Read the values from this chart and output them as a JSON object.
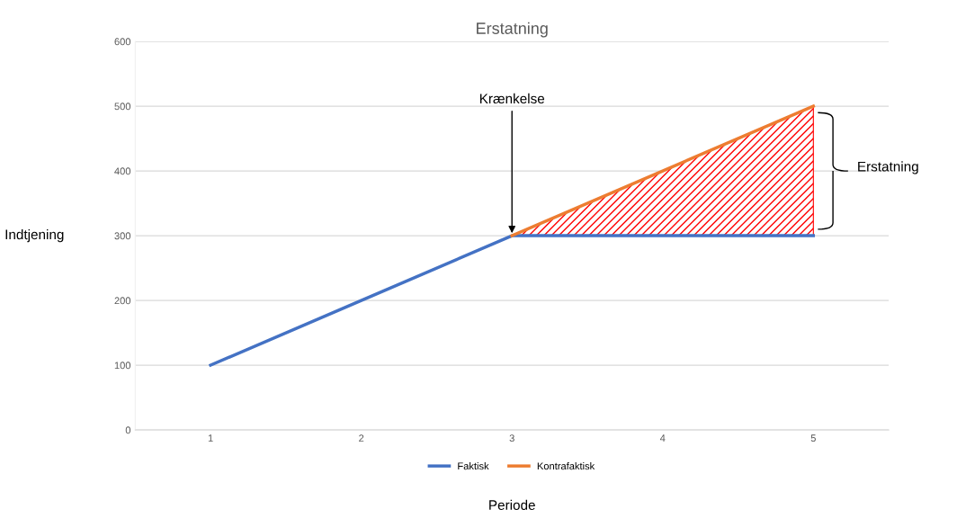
{
  "chart_data": {
    "type": "line",
    "title": "Erstatning",
    "xlabel": "Periode",
    "ylabel": "Indtjening",
    "categories": [
      "1",
      "2",
      "3",
      "4",
      "5"
    ],
    "series": [
      {
        "name": "Faktisk",
        "color": "#4472c4",
        "values": [
          100,
          200,
          300,
          300,
          300
        ]
      },
      {
        "name": "Kontrafaktisk",
        "color": "#ed7d31",
        "values": [
          null,
          null,
          300,
          400,
          500
        ],
        "lower": [
          null,
          null,
          300,
          300,
          300
        ],
        "upper": [
          null,
          null,
          300,
          400,
          500
        ]
      }
    ],
    "annotations": [
      {
        "text": "Krænkelse",
        "x": "3",
        "y": 300
      },
      "Erstatning"
    ],
    "ylim": [
      0,
      600
    ],
    "yticks": [
      0,
      100,
      200,
      300,
      400,
      500,
      600
    ],
    "grid": "y",
    "legend": "bottom",
    "marker": "none",
    "line_style": "solid"
  }
}
